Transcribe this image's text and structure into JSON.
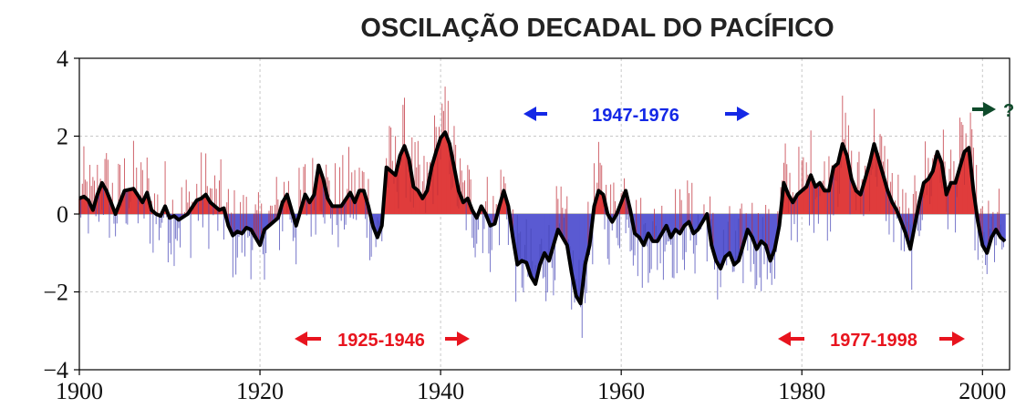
{
  "chart_data": {
    "type": "bar",
    "title": "OSCILAÇÃO DECADAL DO PACÍFICO",
    "xlabel": "",
    "ylabel": "",
    "xlim": [
      1900,
      2003
    ],
    "ylim": [
      -4,
      4
    ],
    "x_ticks": [
      1900,
      1920,
      1940,
      1960,
      1980,
      2000
    ],
    "y_ticks": [
      -4,
      -2,
      0,
      2,
      4
    ],
    "x_tick_labels": [
      "1900",
      "1920",
      "1940",
      "1960",
      "1980",
      "2000"
    ],
    "y_tick_labels": [
      "−4",
      "−2",
      "0",
      "2",
      "4"
    ],
    "grid": true,
    "colors": {
      "positive": "#e03c3c",
      "negative": "#5a5ad2",
      "smooth": "#000000",
      "annotation_red": "#e8141e",
      "annotation_blue": "#1428e6",
      "annotation_green": "#0e4a2a"
    },
    "series": [
      {
        "type": "line",
        "description": "smoothed index (approximate key points)",
        "x": [
          1900.0,
          1900.5,
          1901.0,
          1901.5,
          1902.0,
          1902.5,
          1903.0,
          1903.5,
          1904.0,
          1905.0,
          1906.0,
          1907.0,
          1907.5,
          1908.0,
          1908.5,
          1909.0,
          1909.5,
          1910.0,
          1910.5,
          1911.0,
          1912.0,
          1913.0,
          1913.5,
          1914.0,
          1914.5,
          1915.0,
          1915.5,
          1916.0,
          1916.5,
          1917.0,
          1917.5,
          1918.0,
          1918.5,
          1919.0,
          1919.5,
          1920.0,
          1920.5,
          1921.0,
          1921.5,
          1922.0,
          1922.5,
          1923.0,
          1923.5,
          1924.0,
          1925.0,
          1925.5,
          1926.0,
          1926.5,
          1927.0,
          1927.5,
          1928.0,
          1929.0,
          1930.0,
          1930.5,
          1931.0,
          1931.5,
          1932.0,
          1932.5,
          1933.0,
          1933.5,
          1934.0,
          1934.5,
          1935.0,
          1935.5,
          1936.0,
          1936.5,
          1937.0,
          1937.5,
          1938.0,
          1938.5,
          1939.0,
          1939.5,
          1940.0,
          1940.5,
          1941.0,
          1941.5,
          1942.0,
          1942.5,
          1943.0,
          1943.5,
          1944.0,
          1944.5,
          1945.0,
          1945.5,
          1946.0,
          1946.5,
          1947.0,
          1947.5,
          1948.0,
          1948.5,
          1949.0,
          1949.5,
          1950.0,
          1950.5,
          1951.0,
          1951.5,
          1952.0,
          1952.5,
          1953.0,
          1953.5,
          1954.0,
          1954.5,
          1955.0,
          1955.5,
          1956.0,
          1956.5,
          1957.0,
          1957.5,
          1958.0,
          1958.5,
          1959.0,
          1959.5,
          1960.0,
          1960.5,
          1961.0,
          1961.5,
          1962.0,
          1962.5,
          1963.0,
          1963.5,
          1964.0,
          1964.5,
          1965.0,
          1965.5,
          1966.0,
          1966.5,
          1967.0,
          1967.5,
          1968.0,
          1968.5,
          1969.0,
          1969.5,
          1970.0,
          1970.5,
          1971.0,
          1971.5,
          1972.0,
          1972.5,
          1973.0,
          1973.5,
          1974.0,
          1974.5,
          1975.0,
          1975.5,
          1976.0,
          1976.5,
          1977.0,
          1977.5,
          1978.0,
          1978.5,
          1979.0,
          1979.5,
          1980.0,
          1980.5,
          1981.0,
          1981.5,
          1982.0,
          1982.5,
          1983.0,
          1983.5,
          1984.0,
          1984.5,
          1985.0,
          1985.5,
          1986.0,
          1986.5,
          1987.0,
          1987.5,
          1988.0,
          1988.5,
          1989.0,
          1989.5,
          1990.0,
          1990.5,
          1991.0,
          1991.5,
          1992.0,
          1992.5,
          1993.0,
          1993.5,
          1994.0,
          1994.5,
          1995.0,
          1995.5,
          1996.0,
          1996.5,
          1997.0,
          1997.5,
          1998.0,
          1998.5,
          1999.0,
          1999.5,
          2000.0,
          2000.5,
          2001.0,
          2001.5,
          2002.0,
          2002.5
        ],
        "y": [
          0.4,
          0.45,
          0.35,
          0.1,
          0.5,
          0.8,
          0.6,
          0.3,
          0.0,
          0.6,
          0.65,
          0.3,
          0.55,
          0.1,
          0.0,
          -0.05,
          0.2,
          -0.1,
          -0.05,
          -0.15,
          0.0,
          0.35,
          0.4,
          0.5,
          0.3,
          0.2,
          0.1,
          0.15,
          -0.3,
          -0.55,
          -0.45,
          -0.5,
          -0.35,
          -0.4,
          -0.6,
          -0.8,
          -0.4,
          -0.3,
          -0.2,
          -0.1,
          0.3,
          0.5,
          0.1,
          -0.3,
          0.5,
          0.3,
          0.5,
          1.25,
          0.9,
          0.4,
          0.2,
          0.2,
          0.55,
          0.3,
          0.6,
          0.6,
          0.2,
          -0.3,
          -0.6,
          -0.3,
          1.2,
          1.1,
          1.0,
          1.5,
          1.75,
          1.4,
          0.7,
          0.6,
          0.4,
          0.6,
          1.2,
          1.6,
          1.95,
          2.1,
          1.8,
          1.2,
          0.6,
          0.3,
          0.4,
          0.1,
          -0.1,
          0.2,
          0.0,
          -0.3,
          -0.25,
          0.2,
          0.6,
          0.2,
          -0.6,
          -1.3,
          -1.2,
          -1.25,
          -1.6,
          -1.8,
          -1.3,
          -1.0,
          -1.2,
          -0.8,
          -0.4,
          -0.6,
          -0.8,
          -1.5,
          -2.1,
          -2.3,
          -1.3,
          -0.8,
          0.2,
          0.6,
          0.5,
          0.0,
          -0.2,
          0.0,
          0.3,
          0.6,
          0.1,
          -0.5,
          -0.6,
          -0.8,
          -0.5,
          -0.7,
          -0.7,
          -0.5,
          -0.3,
          -0.6,
          -0.4,
          -0.5,
          -0.3,
          -0.2,
          -0.5,
          -0.4,
          -0.2,
          0.0,
          -0.8,
          -1.2,
          -1.4,
          -1.1,
          -1.0,
          -1.3,
          -1.2,
          -0.8,
          -0.4,
          -0.6,
          -0.9,
          -0.7,
          -0.8,
          -1.2,
          -0.9,
          -0.3,
          0.8,
          0.5,
          0.3,
          0.5,
          0.6,
          0.7,
          1.0,
          0.7,
          0.8,
          0.6,
          0.6,
          1.2,
          1.3,
          1.8,
          1.5,
          0.9,
          0.6,
          0.5,
          0.9,
          1.3,
          1.8,
          1.4,
          1.0,
          0.6,
          0.3,
          0.1,
          -0.2,
          -0.5,
          -0.9,
          -0.3,
          0.3,
          0.8,
          0.9,
          1.1,
          1.6,
          1.3,
          0.5,
          0.8,
          0.8,
          1.2,
          1.6,
          1.7,
          0.6,
          -0.2,
          -0.8,
          -1.0,
          -0.6,
          -0.4,
          -0.6,
          -0.7
        ]
      }
    ],
    "annotations": [
      {
        "text": "1947-1976",
        "color": "annotation_blue"
      },
      {
        "text": "1925-1946",
        "color": "annotation_red"
      },
      {
        "text": "1977-1998",
        "color": "annotation_red"
      },
      {
        "text": "?",
        "color": "annotation_green"
      }
    ]
  }
}
